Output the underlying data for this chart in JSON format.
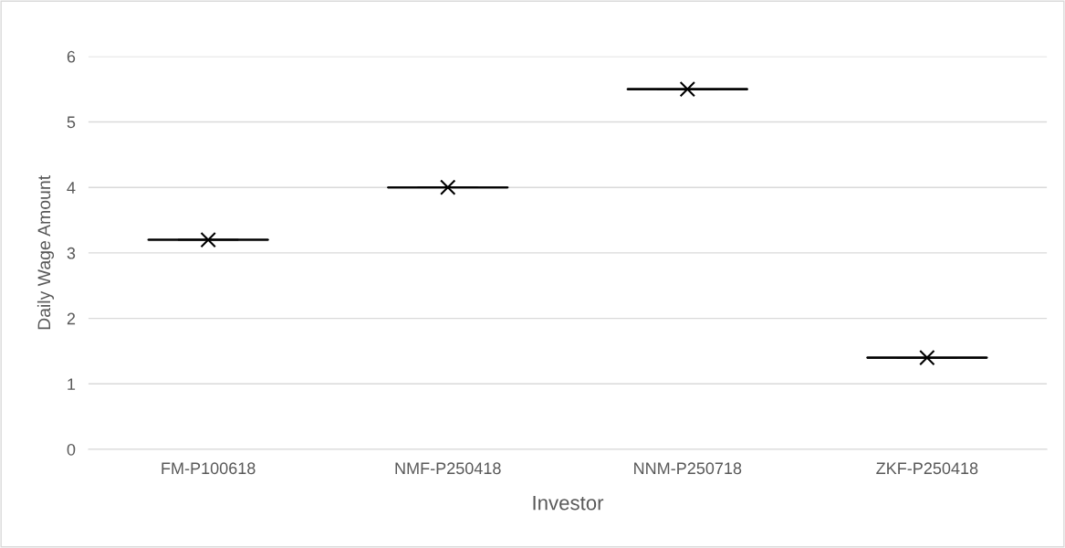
{
  "chart_data": {
    "type": "box",
    "xlabel": "Investor",
    "ylabel": "Daily Wage Amount",
    "categories": [
      "FM-P100618",
      "NMF-P250418",
      "NNM-P250718",
      "ZKF-P250418"
    ],
    "boxes": [
      {
        "low": 3.2,
        "q1": 3.2,
        "median": 3.2,
        "q3": 3.2,
        "high": 3.2,
        "mean": 3.2
      },
      {
        "low": 4,
        "q1": 4,
        "median": 4,
        "q3": 4,
        "high": 4,
        "mean": 4
      },
      {
        "low": 5.5,
        "q1": 5.5,
        "median": 5.5,
        "q3": 5.5,
        "high": 5.5,
        "mean": 5.5
      },
      {
        "low": 1.4,
        "q1": 1.4,
        "median": 1.4,
        "q3": 1.4,
        "high": 1.4,
        "mean": 1.4
      }
    ],
    "color": "#000000",
    "ylim": [
      0,
      6
    ],
    "yticks": [
      0,
      1,
      2,
      3,
      4,
      5,
      6
    ],
    "grid": "y",
    "marker": "cross"
  }
}
